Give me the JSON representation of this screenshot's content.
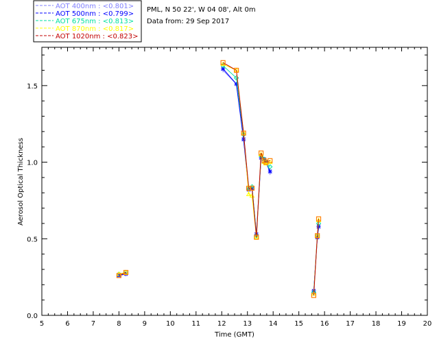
{
  "header": {
    "site_line": "PML, N 50 22', W 04 08', Alt 0m",
    "date_line": "Data from: 29 Sep 2017"
  },
  "chart_data": {
    "type": "line",
    "xlabel": "Time (GMT)",
    "ylabel": "Aerosol Optical Thickness",
    "xlim": [
      5,
      20
    ],
    "ylim": [
      0.0,
      1.75
    ],
    "x_ticks": [
      "5",
      "6",
      "7",
      "8",
      "9",
      "10",
      "11",
      "12",
      "13",
      "14",
      "15",
      "16",
      "17",
      "18",
      "19",
      "20"
    ],
    "y_ticks": [
      "0.0",
      "0.5",
      "1.0",
      "1.5"
    ],
    "series": [
      {
        "name": "AOT  400nm : <0.801>",
        "color": "#8080ff",
        "marker": "plus",
        "x": [
          8.0,
          8.27,
          12.05,
          12.57,
          12.85,
          13.05,
          13.18,
          13.35,
          13.53,
          13.65,
          13.72,
          13.88,
          15.58,
          15.72,
          15.77
        ],
        "y": [
          0.26,
          0.27,
          1.6,
          1.51,
          1.14,
          0.82,
          0.82,
          0.52,
          1.02,
          1.02,
          1.0,
          0.93,
          0.16,
          0.5,
          0.57
        ]
      },
      {
        "name": "AOT  500nm : <0.799>",
        "color": "#0000ff",
        "marker": "asterisk",
        "x": [
          8.0,
          8.27,
          12.05,
          12.57,
          12.85,
          13.05,
          13.18,
          13.35,
          13.53,
          13.65,
          13.72,
          13.88,
          15.58,
          15.72,
          15.77
        ],
        "y": [
          0.26,
          0.27,
          1.61,
          1.51,
          1.15,
          0.82,
          0.83,
          0.53,
          1.03,
          1.02,
          1.0,
          0.94,
          0.16,
          0.51,
          0.58
        ]
      },
      {
        "name": "AOT  675nm : <0.813>",
        "color": "#00e0a0",
        "marker": "diamond",
        "x": [
          8.0,
          8.27,
          12.05,
          12.57,
          12.85,
          13.05,
          13.18,
          13.35,
          13.53,
          13.65,
          13.72,
          13.88,
          15.58,
          15.72,
          15.77
        ],
        "y": [
          0.27,
          0.28,
          1.63,
          1.55,
          1.18,
          0.83,
          0.84,
          0.52,
          1.04,
          1.02,
          1.0,
          0.97,
          0.15,
          0.52,
          0.6
        ]
      },
      {
        "name": "AOT  870nm : <0.817>",
        "color": "#ffff00",
        "marker": "triangle",
        "x": [
          8.0,
          8.27,
          12.05,
          12.57,
          12.85,
          13.05,
          13.18,
          13.35,
          13.53,
          13.65,
          13.72,
          13.88,
          15.58,
          15.72,
          15.77
        ],
        "y": [
          0.27,
          0.28,
          1.64,
          1.6,
          1.19,
          0.79,
          0.78,
          0.51,
          1.05,
          1.0,
          0.99,
          1.0,
          0.14,
          0.52,
          0.62
        ]
      },
      {
        "name": "AOT 1020nm : <0.823>",
        "color": "#c00000",
        "marker": "square",
        "x": [
          8.0,
          8.27,
          12.05,
          12.57,
          12.85,
          13.05,
          13.18,
          13.35,
          13.53,
          13.65,
          13.72,
          13.88,
          15.58,
          15.72,
          15.77
        ],
        "y": [
          0.26,
          0.28,
          1.65,
          1.6,
          1.19,
          0.83,
          0.83,
          0.51,
          1.06,
          1.01,
          1.0,
          1.01,
          0.13,
          0.52,
          0.63
        ]
      }
    ],
    "marker_colors": {
      "square": "#ff8000"
    },
    "grid": false,
    "legend_position": "top-left"
  }
}
